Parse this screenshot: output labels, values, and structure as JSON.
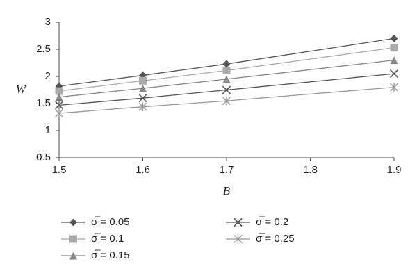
{
  "chart_data": {
    "type": "line",
    "x_label": "B",
    "y_label": "W",
    "x": [
      1.5,
      1.6,
      1.7,
      1.9
    ],
    "xlim": [
      1.5,
      1.9
    ],
    "xticks": [
      1.5,
      1.6,
      1.7,
      1.8,
      1.9
    ],
    "ylim": [
      0.5,
      3
    ],
    "yticks": [
      0.5,
      1,
      1.5,
      2,
      2.5,
      3
    ],
    "grid": false,
    "series": [
      {
        "name": "σ̅ = 0.05",
        "color": "#555555",
        "marker": "diamond",
        "values": [
          1.82,
          2.02,
          2.23,
          2.7
        ]
      },
      {
        "name": "σ̅ = 0.1",
        "color": "#aaaaaa",
        "marker": "square",
        "values": [
          1.73,
          1.92,
          2.11,
          2.53
        ]
      },
      {
        "name": "σ̅ = 0.15",
        "color": "#888888",
        "marker": "triangle",
        "values": [
          1.62,
          1.78,
          1.95,
          2.3
        ]
      },
      {
        "name": "σ̅ = 0.2",
        "color": "#555555",
        "marker": "x",
        "values": [
          1.47,
          1.6,
          1.75,
          2.05
        ]
      },
      {
        "name": "σ̅ = 0.25",
        "color": "#999999",
        "marker": "star",
        "values": [
          1.32,
          1.44,
          1.55,
          1.8
        ]
      }
    ]
  }
}
